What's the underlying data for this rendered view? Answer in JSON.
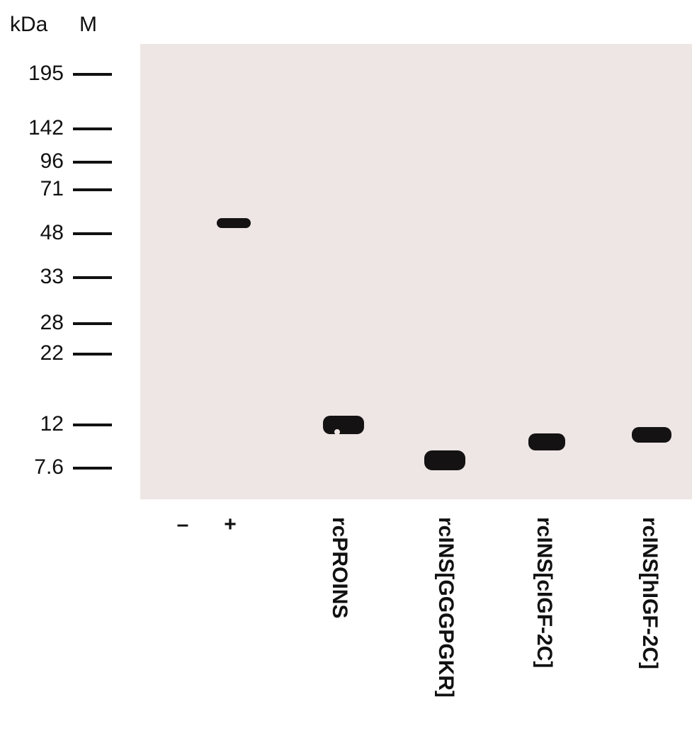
{
  "header": {
    "unit": "kDa",
    "marker_lane": "M"
  },
  "markers": [
    "195",
    "142",
    "96",
    "71",
    "48",
    "33",
    "28",
    "22",
    "12",
    "7.6"
  ],
  "lanes": [
    "–",
    "+",
    "rcPROINS",
    "rcINS[GGGPGKR]",
    "rcINS[cIGF-2C]",
    "rcINS[hIGF-2C]"
  ]
}
